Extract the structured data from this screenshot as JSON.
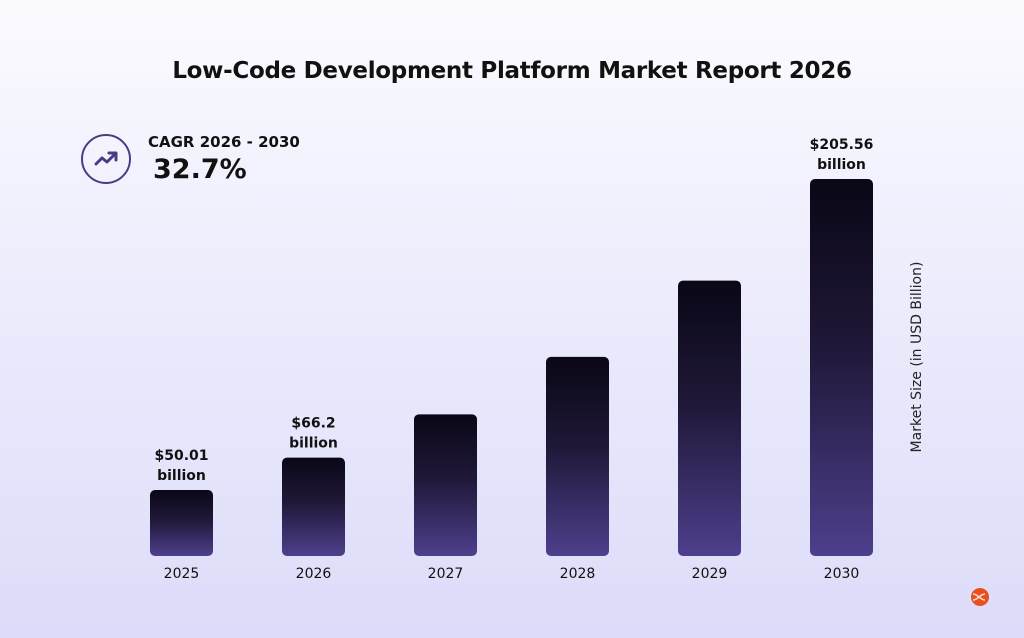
{
  "chart_data": {
    "type": "bar",
    "title": "Low-Code Development Platform Market Report 2026",
    "xlabel": "",
    "ylabel": "Market Size (in USD Billion)",
    "categories": [
      "2025",
      "2026",
      "2027",
      "2028",
      "2029",
      "2030"
    ],
    "values": [
      50.01,
      66.2,
      87.85,
      116.6,
      154.7,
      205.56
    ],
    "data_labels": [
      {
        "index": 0,
        "line1": "$50.01",
        "line2": "billion"
      },
      {
        "index": 1,
        "line1": "$66.2",
        "line2": "billion"
      },
      {
        "index": 5,
        "line1": "$205.56",
        "line2": "billion"
      }
    ],
    "ylim": [
      0,
      205.56
    ],
    "grid": false,
    "legend": "none",
    "colors": {
      "bar_top": "#0a0716",
      "bar_bottom": "#4e3f8c",
      "accent": "#4b3a86",
      "logo": "#e8501e"
    }
  },
  "cagr": {
    "label": "CAGR 2026 - 2030",
    "value": "32.7%",
    "icon": "trending-up-icon"
  }
}
